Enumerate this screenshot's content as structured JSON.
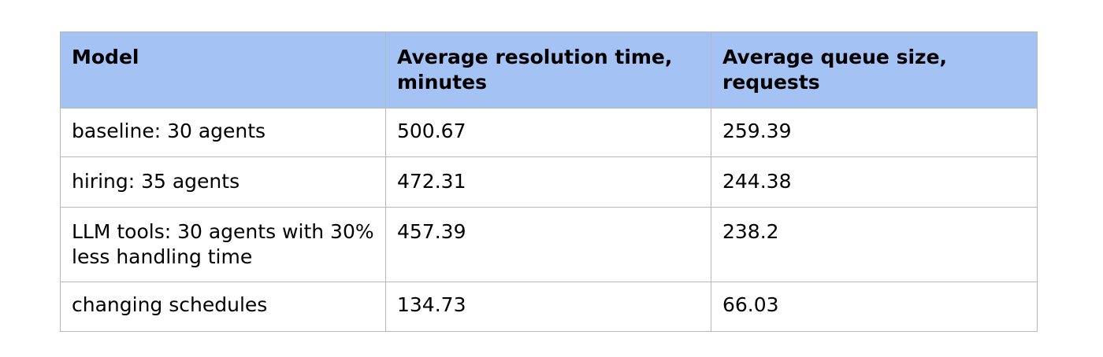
{
  "table": {
    "headers": [
      "Model",
      "Average resolution time, minutes",
      "Average queue size, requests"
    ],
    "rows": [
      [
        "baseline: 30 agents",
        "500.67",
        "259.39"
      ],
      [
        "hiring: 35 agents",
        "472.31",
        "244.38"
      ],
      [
        "LLM tools: 30 agents with 30% less handling time",
        "457.39",
        "238.2"
      ],
      [
        "changing schedules",
        "134.73",
        "66.03"
      ]
    ]
  },
  "colors": {
    "header_background": "#a4c2f4",
    "border": "#b7b7b7"
  }
}
